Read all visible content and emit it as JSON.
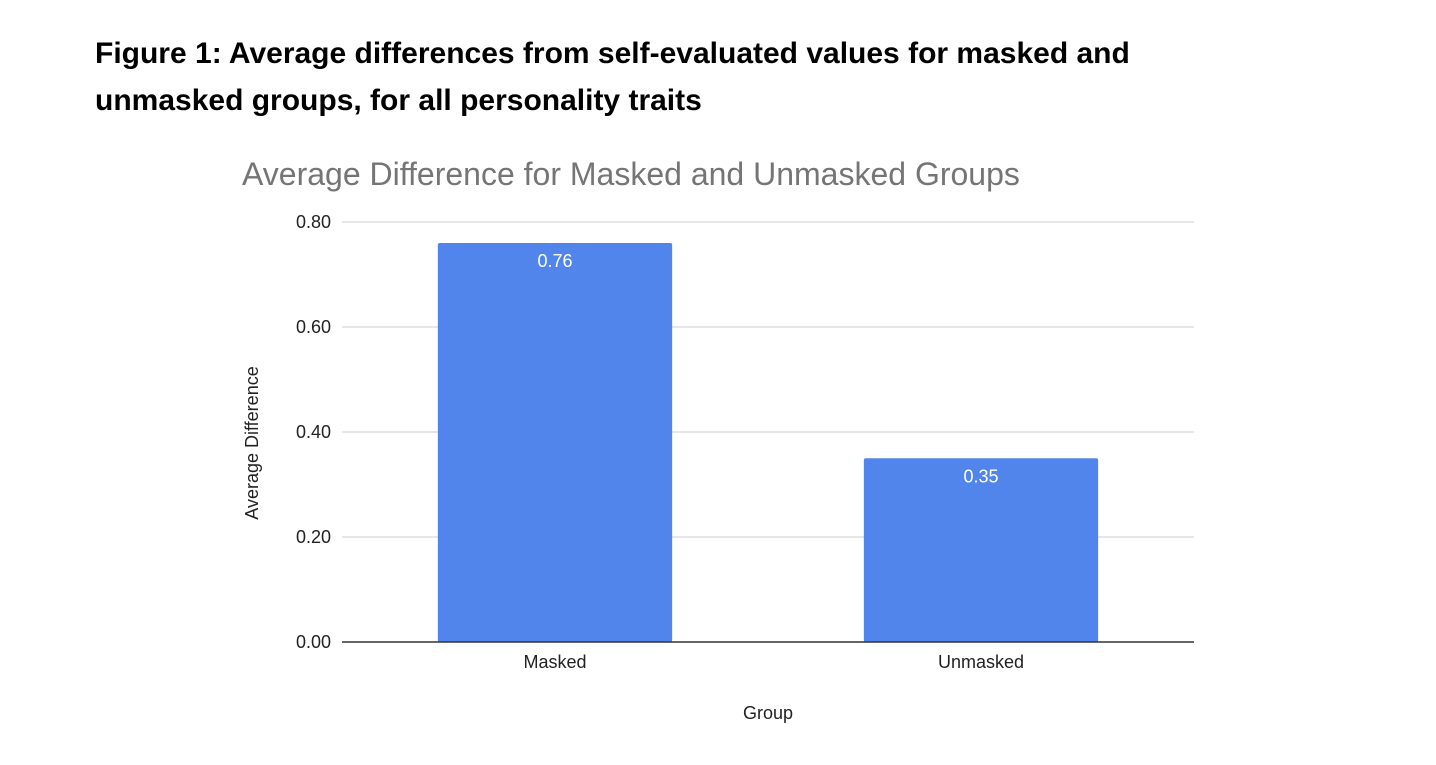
{
  "figure": {
    "caption": "Figure 1: Average differences from self-evaluated values for masked and unmasked groups, for all personality traits"
  },
  "chart_data": {
    "type": "bar",
    "title": "Average Difference for Masked and Unmasked Groups",
    "xlabel": "Group",
    "ylabel": "Average Difference",
    "categories": [
      "Masked",
      "Unmasked"
    ],
    "values": [
      0.76,
      0.35
    ],
    "data_labels": [
      "0.76",
      "0.35"
    ],
    "ylim": [
      0,
      0.8
    ],
    "yticks": [
      0,
      0.2,
      0.4,
      0.6,
      0.8
    ],
    "ytick_labels": [
      "0.00",
      "0.20",
      "0.40",
      "0.60",
      "0.80"
    ],
    "grid": true,
    "legend": "none",
    "bar_color": "#5285EC",
    "grid_color": "#CCCCCC",
    "axis_color": "#333333",
    "title_color": "#757575"
  }
}
